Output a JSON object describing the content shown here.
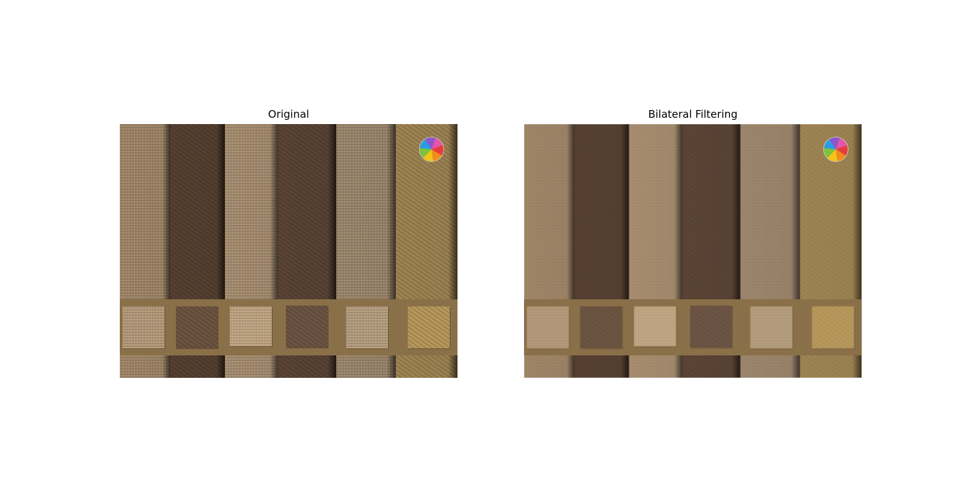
{
  "panels": [
    {
      "title": "Original",
      "filtered": false,
      "icon": "pinwheel-logo"
    },
    {
      "title": "Bilateral Filtering",
      "filtered": true,
      "icon": "pinwheel-logo"
    }
  ],
  "colors": {
    "strip_band": "#8a7048",
    "stripes": [
      "#a88c6c",
      "#5c4434",
      "#b09474",
      "#604838",
      "#a48c70",
      "#a88c58"
    ],
    "swatches": [
      "#b49878",
      "#6c5440",
      "#c0a480",
      "#6c5444",
      "#b49c7c",
      "#b8985c"
    ],
    "pinwheel": [
      "#e83c3c",
      "#f08c1c",
      "#f4c418",
      "#7cc43c",
      "#2c9ce0",
      "#8c54d0",
      "#e454a8"
    ]
  }
}
